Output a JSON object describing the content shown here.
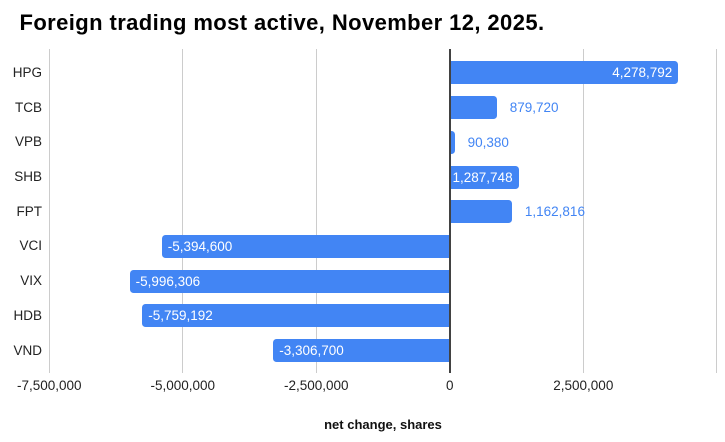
{
  "title": "Foreign trading most active, November 12, 2025.",
  "chart_data": {
    "type": "bar",
    "orientation": "horizontal",
    "title": "Foreign trading most active, November 12, 2025.",
    "xlabel": "net change, shares",
    "ylabel": "",
    "categories": [
      "HPG",
      "TCB",
      "VPB",
      "SHB",
      "FPT",
      "VCI",
      "VIX",
      "HDB",
      "VND"
    ],
    "values": [
      4278792,
      879720,
      90380,
      1287748,
      1162816,
      -5394600,
      -5996306,
      -5759192,
      -3306700
    ],
    "points": [
      {
        "category": "HPG",
        "value": 4278792,
        "label": "4,278,792",
        "label_position": "inside"
      },
      {
        "category": "TCB",
        "value": 879720,
        "label": "879,720",
        "label_position": "outside"
      },
      {
        "category": "VPB",
        "value": 90380,
        "label": "90,380",
        "label_position": "outside"
      },
      {
        "category": "SHB",
        "value": 1287748,
        "label": "1,287,748",
        "label_position": "inside"
      },
      {
        "category": "FPT",
        "value": 1162816,
        "label": "1,162,816",
        "label_position": "outside"
      },
      {
        "category": "VCI",
        "value": -5394600,
        "label": "-5,394,600",
        "label_position": "inside"
      },
      {
        "category": "VIX",
        "value": -5996306,
        "label": "-5,996,306",
        "label_position": "inside"
      },
      {
        "category": "HDB",
        "value": -5759192,
        "label": "-5,759,192",
        "label_position": "inside"
      },
      {
        "category": "VND",
        "value": -3306700,
        "label": "-3,306,700",
        "label_position": "inside"
      }
    ],
    "xlim": [
      -7500000,
      5000000
    ],
    "x_ticks": [
      {
        "value": -7500000,
        "label": "-7,500,000"
      },
      {
        "value": -5000000,
        "label": "-5,000,000"
      },
      {
        "value": -2500000,
        "label": "-2,500,000"
      },
      {
        "value": 0,
        "label": "0"
      },
      {
        "value": 2500000,
        "label": "2,500,000"
      },
      {
        "value": 5000000,
        "label": ""
      }
    ],
    "grid": true,
    "legend_position": "none",
    "colors": {
      "bar": "#4285f4",
      "annotation_inside": "#ffffff",
      "annotation_outside": "#4285f4",
      "gridline": "#cccccc",
      "zero_line": "#424242",
      "axis_text": "#222222",
      "title_text": "#000000"
    }
  }
}
